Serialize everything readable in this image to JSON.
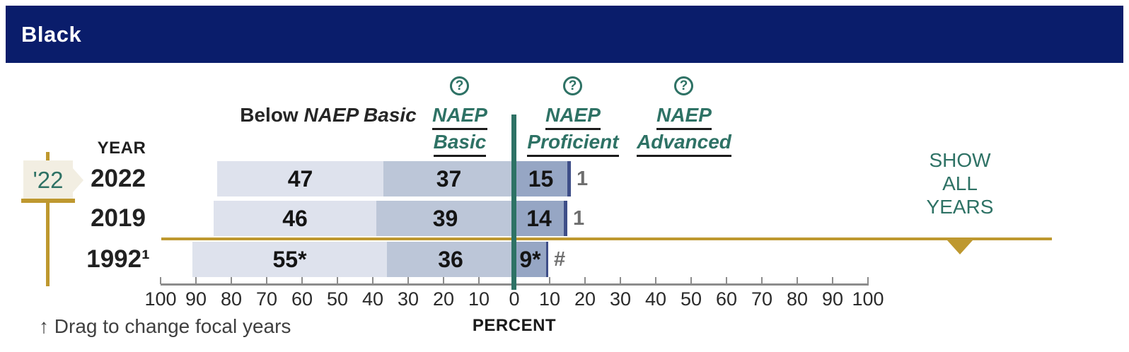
{
  "banner": {
    "title": "Black"
  },
  "columns": [
    {
      "line1": "Below",
      "line2": "NAEP Basic"
    },
    {
      "line1": "NAEP",
      "line2": "Basic"
    },
    {
      "line1": "NAEP",
      "line2": "Proficient"
    },
    {
      "line1": "NAEP",
      "line2": "Advanced"
    }
  ],
  "help_icon_glyph": "?",
  "year_column_header": "YEAR",
  "focal_year_flag": "'22",
  "show_all_years": [
    "SHOW",
    "ALL",
    "YEARS"
  ],
  "drag_hint": "↑ Drag to change focal years",
  "axis_label": "PERCENT",
  "colors": {
    "banner_bg": "#0a1d6b",
    "teal": "#2e7265",
    "gold": "#be982f",
    "flag_bg": "#f2eee2",
    "below_basic": "#dee2ed",
    "basic": "#bcc6d8",
    "proficient": "#96a6c4",
    "advanced": "#3e4e88",
    "axis_gray": "#8c8c8c",
    "outside_label_gray": "#6e6e6e"
  },
  "chart_data": {
    "type": "bar",
    "subtype": "horizontal-diverging-stacked",
    "title": "Black",
    "categories": [
      "2022",
      "2019",
      "1992¹"
    ],
    "series": [
      {
        "name": "Below NAEP Basic",
        "side": "left",
        "values": [
          47,
          46,
          55
        ],
        "labels": [
          "47",
          "46",
          "55*"
        ]
      },
      {
        "name": "NAEP Basic",
        "side": "left",
        "values": [
          37,
          39,
          36
        ],
        "labels": [
          "37",
          "39",
          "36"
        ]
      },
      {
        "name": "NAEP Proficient",
        "side": "right",
        "values": [
          15,
          14,
          9
        ],
        "labels": [
          "15",
          "14",
          "9*"
        ]
      },
      {
        "name": "NAEP Advanced",
        "side": "right",
        "values": [
          1,
          1,
          0
        ],
        "labels": [
          "1",
          "1",
          "#"
        ]
      }
    ],
    "xlabel": "PERCENT",
    "x_axis": {
      "ticks": [
        100,
        90,
        80,
        70,
        60,
        50,
        40,
        30,
        20,
        10,
        0,
        10,
        20,
        30,
        40,
        50,
        60,
        70,
        80,
        90,
        100
      ],
      "zero_centered": true,
      "note": "percent below basic/basic plotted left of 0; proficient/advanced right of 0"
    },
    "legend_position": "column headers above chart",
    "grid": false
  }
}
